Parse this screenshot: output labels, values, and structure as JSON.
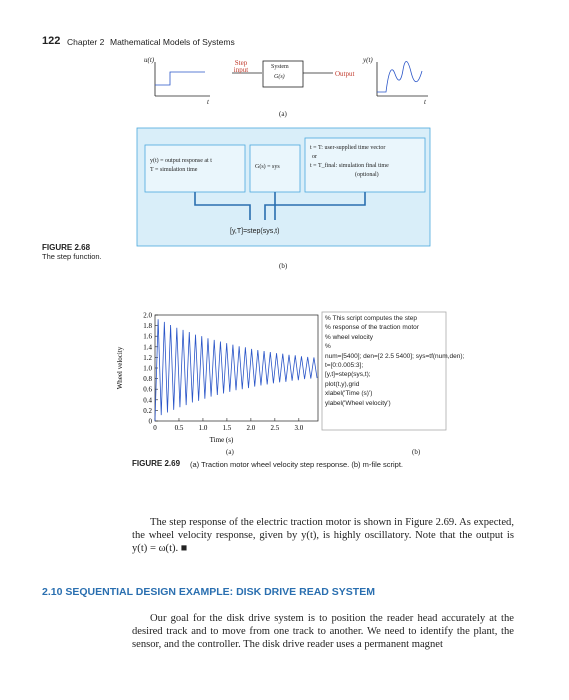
{
  "header": {
    "page_number": "122",
    "chapter": "Chapter 2",
    "title": "Mathematical Models of Systems"
  },
  "figure_2_68": {
    "part_a": {
      "input_label": "u(t)",
      "input_time": "t",
      "step_input": "Step input",
      "system": "System",
      "transfer": "G(s)",
      "output": "Output",
      "output_label": "y(t)",
      "output_time": "t",
      "label": "(a)"
    },
    "part_b": {
      "left_box": [
        "y(t) = output response at t",
        "T = simulation time"
      ],
      "middle_box": "G(s) = sys",
      "right_box": [
        "t = T: user-supplied time vector",
        "or",
        "t = T_final: simulation final time",
        "(optional)"
      ],
      "command": "[y,T]=step(sys,t)",
      "label": "(b)"
    },
    "caption": {
      "number": "FIGURE 2.68",
      "text": "The step function."
    }
  },
  "figure_2_69": {
    "chart_data": {
      "type": "line",
      "xlabel": "Time (s)",
      "ylabel": "Wheel velocity",
      "color": "#2a55c8",
      "xlim": [
        0,
        3.4
      ],
      "ylim": [
        0,
        2.0
      ],
      "xticks": [
        0,
        0.5,
        {
          "value": 1,
          "label": "1.0"
        },
        1.5,
        {
          "value": 2,
          "label": "2.0"
        },
        2.5,
        {
          "value": 3,
          "label": "3.0"
        }
      ],
      "yticks": [
        0,
        0.2,
        0.4,
        0.6,
        0.8,
        {
          "value": 1,
          "label": "1.0"
        },
        1.2,
        1.4,
        1.6,
        1.8,
        {
          "value": 2,
          "label": "2.0"
        }
      ],
      "x": [
        0,
        0.065,
        0.13,
        0.195,
        0.26,
        0.325,
        0.39,
        0.455,
        0.52,
        0.585,
        0.65,
        0.715,
        0.78,
        0.845,
        0.91,
        0.975,
        1.04,
        1.105,
        1.17,
        1.235,
        1.3,
        1.365,
        1.43,
        1.495,
        1.56,
        1.625,
        1.69,
        1.755,
        1.82,
        1.885,
        1.95,
        2.015,
        2.08,
        2.145,
        2.21,
        2.275,
        2.34,
        2.405,
        2.47,
        2.535,
        2.6,
        2.665,
        2.73,
        2.795,
        2.86,
        2.925,
        2.99,
        3.055,
        3.12,
        3.185,
        3.25,
        3.315,
        3.38
      ],
      "y": [
        0,
        1.92,
        0.11,
        1.87,
        0.16,
        1.81,
        0.21,
        1.76,
        0.26,
        1.72,
        0.3,
        1.68,
        0.35,
        1.63,
        0.38,
        1.6,
        0.42,
        1.56,
        0.46,
        1.53,
        0.49,
        1.5,
        0.52,
        1.47,
        0.55,
        1.44,
        0.58,
        1.41,
        0.6,
        1.39,
        0.62,
        1.36,
        0.65,
        1.34,
        0.67,
        1.32,
        0.69,
        1.3,
        0.71,
        1.28,
        0.73,
        1.27,
        0.74,
        1.25,
        0.76,
        1.24,
        0.77,
        1.22,
        0.79,
        1.21,
        0.8,
        1.2,
        0.81
      ]
    },
    "script": [
      "% This script computes the step",
      "% response of the traction motor",
      "% wheel velocity",
      "%",
      "num=[5400]; den=[2 2.5 5400]; sys=tf(num,den);",
      "t=[0:0.005:3];",
      "[y,t]=step(sys,t);",
      "plot(t,y),grid",
      "xlabel('Time (s)')",
      "ylabel('Wheel velocity')"
    ],
    "label_a": "(a)",
    "label_b": "(b)",
    "caption": {
      "number": "FIGURE 2.69",
      "text": "(a) Traction motor wheel velocity step response. (b) m-file script."
    }
  },
  "body": {
    "paragraph_1": "The step response of the electric traction motor is shown in Figure 2.69. As expected, the wheel velocity response, given by y(t), is highly oscillatory. Note that the output is y(t) = ω(t). ■",
    "section_heading": "2.10 SEQUENTIAL DESIGN EXAMPLE: DISK DRIVE READ SYSTEM",
    "paragraph_2": "Our goal for the disk drive system is to position the reader head accurately at the desired track and to move from one track to another. We need to identify the plant, the sensor, and the controller. The disk drive reader uses a permanent magnet"
  }
}
